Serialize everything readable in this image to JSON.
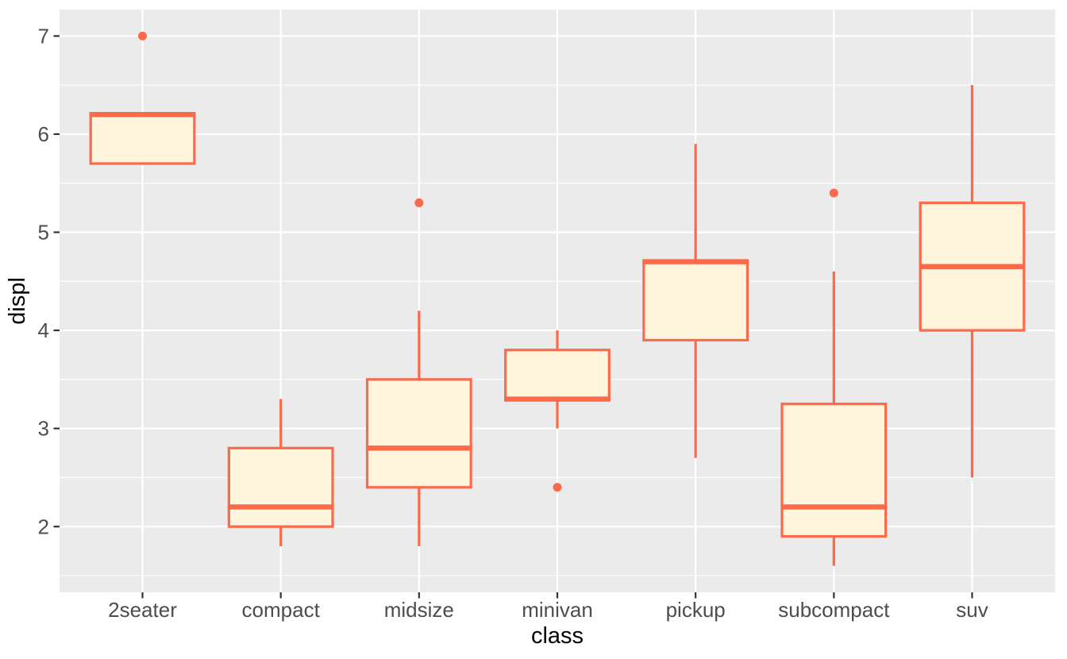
{
  "chart_data": {
    "type": "boxplot",
    "title": "",
    "xlabel": "class",
    "ylabel": "displ",
    "legend": "none",
    "grid": "major+minor horizontal, major vertical at categories",
    "categories": [
      "2seater",
      "compact",
      "midsize",
      "minivan",
      "pickup",
      "subcompact",
      "suv"
    ],
    "boxes": [
      {
        "category": "2seater",
        "whisker_low": 5.7,
        "q1": 5.7,
        "median": 6.2,
        "q3": 6.2,
        "whisker_high": 6.2,
        "outliers": [
          7.0
        ]
      },
      {
        "category": "compact",
        "whisker_low": 1.8,
        "q1": 2.0,
        "median": 2.2,
        "q3": 2.8,
        "whisker_high": 3.3,
        "outliers": []
      },
      {
        "category": "midsize",
        "whisker_low": 1.8,
        "q1": 2.4,
        "median": 2.8,
        "q3": 3.5,
        "whisker_high": 4.2,
        "outliers": [
          5.3
        ]
      },
      {
        "category": "minivan",
        "whisker_low": 3.0,
        "q1": 3.3,
        "median": 3.3,
        "q3": 3.8,
        "whisker_high": 4.0,
        "outliers": [
          2.4
        ]
      },
      {
        "category": "pickup",
        "whisker_low": 2.7,
        "q1": 3.9,
        "median": 4.7,
        "q3": 4.7,
        "whisker_high": 5.9,
        "outliers": []
      },
      {
        "category": "subcompact",
        "whisker_low": 1.6,
        "q1": 1.9,
        "median": 2.2,
        "q3": 3.25,
        "whisker_high": 4.6,
        "outliers": [
          5.4
        ]
      },
      {
        "category": "suv",
        "whisker_low": 2.5,
        "q1": 4.0,
        "median": 4.65,
        "q3": 5.3,
        "whisker_high": 6.5,
        "outliers": []
      }
    ],
    "x_axis": {
      "title": "class"
    },
    "y_axis": {
      "title": "displ",
      "ticks": [
        "2",
        "3",
        "4",
        "5",
        "6",
        "7"
      ],
      "tick_values": [
        2,
        3,
        4,
        5,
        6,
        7
      ],
      "minor_values": [
        1.5,
        2.5,
        3.5,
        4.5,
        5.5,
        6.5
      ],
      "limits": [
        1.33,
        7.27
      ]
    },
    "box_width_fraction": 0.75,
    "colors": {
      "box_border": "#FB6A4A",
      "box_fill": "#FFF5DC",
      "outlier": "#FB6A4A",
      "panel_bg": "#EBEBEB",
      "grid_major": "#FFFFFF",
      "grid_minor": "#FFFFFF",
      "tick_mark": "#333333",
      "axis_text": "#4D4D4D",
      "axis_title": "#000000",
      "background": "#FFFFFF"
    }
  }
}
